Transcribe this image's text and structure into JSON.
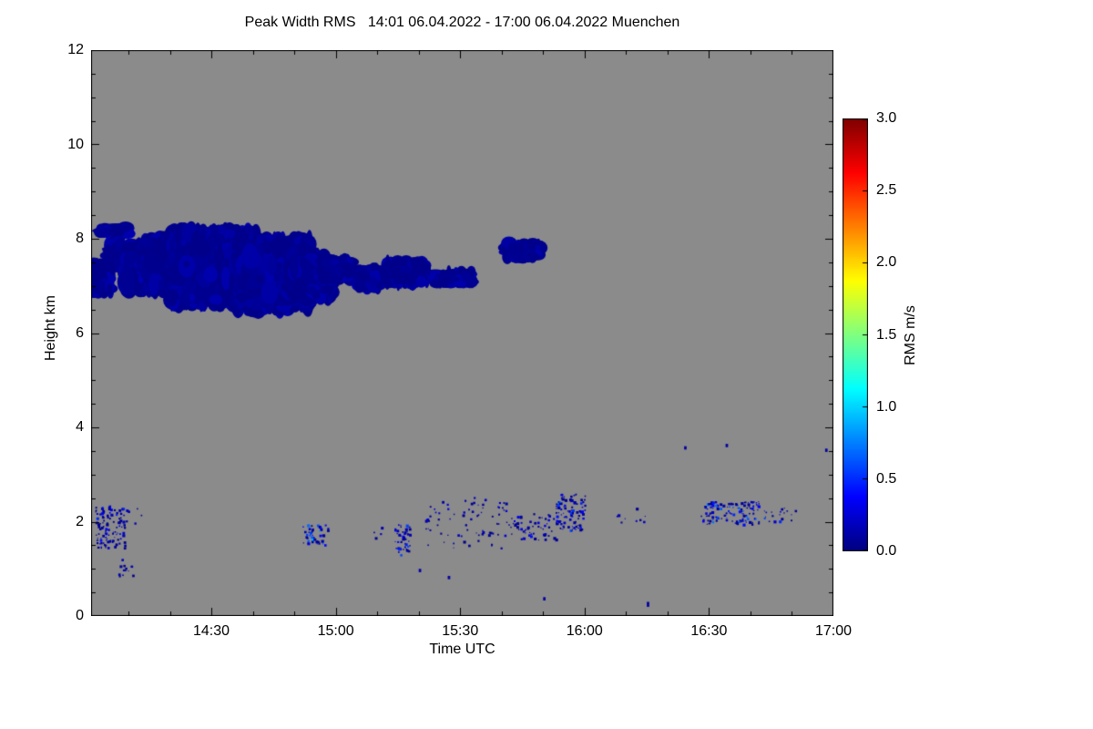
{
  "chart_data": {
    "type": "heatmap",
    "title": "Peak Width RMS   14:01 06.04.2022 - 17:00 06.04.2022 Muenchen",
    "xlabel": "Time UTC",
    "ylabel": "Height km",
    "plot_bg": "#8b8b8b",
    "frame_color": "#000000",
    "x_range_minutes": [
      841,
      1020
    ],
    "x_start_label": "14:01",
    "x_end_label": "17:00",
    "ylim": [
      0,
      12
    ],
    "grid": false,
    "xticks": [
      {
        "t": 870,
        "label": "14:30"
      },
      {
        "t": 900,
        "label": "15:00"
      },
      {
        "t": 930,
        "label": "15:30"
      },
      {
        "t": 960,
        "label": "16:00"
      },
      {
        "t": 990,
        "label": "16:30"
      },
      {
        "t": 1020,
        "label": "17:00"
      }
    ],
    "yticks": [
      {
        "v": 0,
        "label": "0"
      },
      {
        "v": 2,
        "label": "2"
      },
      {
        "v": 4,
        "label": "4"
      },
      {
        "v": 6,
        "label": "6"
      },
      {
        "v": 8,
        "label": "8"
      },
      {
        "v": 10,
        "label": "10"
      },
      {
        "v": 12,
        "label": "12"
      }
    ],
    "colorbar": {
      "label": "RMS m/s",
      "min": 0.0,
      "max": 3.0,
      "colormap": "jet",
      "ticks": [
        {
          "v": 0.0,
          "label": "0.0"
        },
        {
          "v": 0.5,
          "label": "0.5"
        },
        {
          "v": 1.0,
          "label": "1.0"
        },
        {
          "v": 1.5,
          "label": "1.5"
        },
        {
          "v": 2.0,
          "label": "2.0"
        },
        {
          "v": 2.5,
          "label": "2.5"
        },
        {
          "v": 3.0,
          "label": "3.0"
        }
      ]
    },
    "clusters": [
      {
        "t0": 841,
        "t1": 846,
        "h0": 6.8,
        "h1": 7.5,
        "vmin": 0.03,
        "vmax": 0.15,
        "style": "blob"
      },
      {
        "t0": 843,
        "t1": 850,
        "h0": 8.05,
        "h1": 8.3,
        "vmin": 0.03,
        "vmax": 0.15,
        "style": "blob"
      },
      {
        "t0": 845,
        "t1": 853,
        "h0": 7.35,
        "h1": 7.95,
        "vmin": 0.03,
        "vmax": 0.15,
        "style": "blob"
      },
      {
        "t0": 849,
        "t1": 857,
        "h0": 6.85,
        "h1": 7.8,
        "vmin": 0.03,
        "vmax": 0.15,
        "style": "blob"
      },
      {
        "t0": 854,
        "t1": 866,
        "h0": 6.8,
        "h1": 8.1,
        "vmin": 0.03,
        "vmax": 0.15,
        "style": "blob"
      },
      {
        "t0": 860,
        "t1": 881,
        "h0": 6.45,
        "h1": 8.35,
        "vmin": 0.03,
        "vmax": 0.15,
        "style": "blob"
      },
      {
        "t0": 876,
        "t1": 894,
        "h0": 6.35,
        "h1": 8.15,
        "vmin": 0.03,
        "vmax": 0.15,
        "style": "blob"
      },
      {
        "t0": 888,
        "t1": 899,
        "h0": 6.7,
        "h1": 7.7,
        "vmin": 0.03,
        "vmax": 0.15,
        "style": "blob"
      },
      {
        "t0": 896,
        "t1": 904,
        "h0": 7.1,
        "h1": 7.6,
        "vmin": 0.03,
        "vmax": 0.15,
        "style": "blob"
      },
      {
        "t0": 905,
        "t1": 911,
        "h0": 6.9,
        "h1": 7.4,
        "vmin": 0.03,
        "vmax": 0.15,
        "style": "blob"
      },
      {
        "t0": 912,
        "t1": 922,
        "h0": 7.0,
        "h1": 7.55,
        "vmin": 0.03,
        "vmax": 0.15,
        "style": "blob"
      },
      {
        "t0": 924,
        "t1": 933,
        "h0": 7.0,
        "h1": 7.35,
        "vmin": 0.03,
        "vmax": 0.15,
        "style": "blob"
      },
      {
        "t0": 941,
        "t1": 949,
        "h0": 7.55,
        "h1": 7.95,
        "vmin": 0.03,
        "vmax": 0.15,
        "style": "blob"
      },
      {
        "t0": 842,
        "t1": 849,
        "h0": 1.45,
        "h1": 2.35,
        "vmin": 0.03,
        "vmax": 0.5,
        "style": "speckle",
        "density": "dense"
      },
      {
        "t0": 849,
        "t1": 853,
        "h0": 1.9,
        "h1": 2.3,
        "vmin": 0.05,
        "vmax": 0.3,
        "style": "speckle",
        "density": "sparse"
      },
      {
        "t0": 847,
        "t1": 851,
        "h0": 0.85,
        "h1": 1.25,
        "vmin": 0.05,
        "vmax": 0.2,
        "style": "speckle",
        "density": "medium"
      },
      {
        "t0": 892,
        "t1": 898,
        "h0": 1.5,
        "h1": 1.95,
        "vmin": 0.05,
        "vmax": 1.0,
        "style": "speckle",
        "density": "dense"
      },
      {
        "t0": 908,
        "t1": 911,
        "h0": 1.6,
        "h1": 1.9,
        "vmin": 0.05,
        "vmax": 0.3,
        "style": "speckle",
        "density": "sparse"
      },
      {
        "t0": 914,
        "t1": 918,
        "h0": 1.3,
        "h1": 1.95,
        "vmin": 0.05,
        "vmax": 0.6,
        "style": "speckle",
        "density": "dense"
      },
      {
        "t0": 921,
        "t1": 941,
        "h0": 1.45,
        "h1": 2.55,
        "vmin": 0.03,
        "vmax": 0.3,
        "style": "speckle",
        "density": "sparse"
      },
      {
        "t0": 941,
        "t1": 953,
        "h0": 1.55,
        "h1": 2.2,
        "vmin": 0.03,
        "vmax": 0.4,
        "style": "speckle",
        "density": "medium"
      },
      {
        "t0": 953,
        "t1": 960,
        "h0": 1.8,
        "h1": 2.6,
        "vmin": 0.05,
        "vmax": 0.8,
        "style": "speckle",
        "density": "dense"
      },
      {
        "t0": 967,
        "t1": 975,
        "h0": 2.0,
        "h1": 2.3,
        "vmin": 0.05,
        "vmax": 0.3,
        "style": "speckle",
        "density": "sparse"
      },
      {
        "t0": 988,
        "t1": 1002,
        "h0": 1.95,
        "h1": 2.45,
        "vmin": 0.05,
        "vmax": 0.8,
        "style": "speckle",
        "density": "dense"
      },
      {
        "t0": 1003,
        "t1": 1011,
        "h0": 2.0,
        "h1": 2.3,
        "vmin": 0.05,
        "vmax": 0.6,
        "style": "speckle",
        "density": "medium"
      },
      {
        "t0": 920,
        "t1": 921,
        "h0": 0.9,
        "h1": 1.0,
        "vmin": 0.1,
        "vmax": 0.1,
        "style": "dot"
      },
      {
        "t0": 927,
        "t1": 928,
        "h0": 0.75,
        "h1": 0.85,
        "vmin": 0.1,
        "vmax": 0.1,
        "style": "dot"
      },
      {
        "t0": 984,
        "t1": 985,
        "h0": 3.5,
        "h1": 3.6,
        "vmin": 0.1,
        "vmax": 0.1,
        "style": "dot"
      },
      {
        "t0": 994,
        "t1": 995,
        "h0": 3.55,
        "h1": 3.65,
        "vmin": 0.1,
        "vmax": 0.1,
        "style": "dot"
      },
      {
        "t0": 1018,
        "t1": 1019,
        "h0": 3.45,
        "h1": 3.55,
        "vmin": 0.1,
        "vmax": 0.1,
        "style": "dot"
      },
      {
        "t0": 975,
        "t1": 976,
        "h0": 0.15,
        "h1": 0.3,
        "vmin": 0.1,
        "vmax": 0.1,
        "style": "dot"
      },
      {
        "t0": 950,
        "t1": 951,
        "h0": 0.3,
        "h1": 0.4,
        "vmin": 0.1,
        "vmax": 0.1,
        "style": "dot"
      }
    ]
  }
}
